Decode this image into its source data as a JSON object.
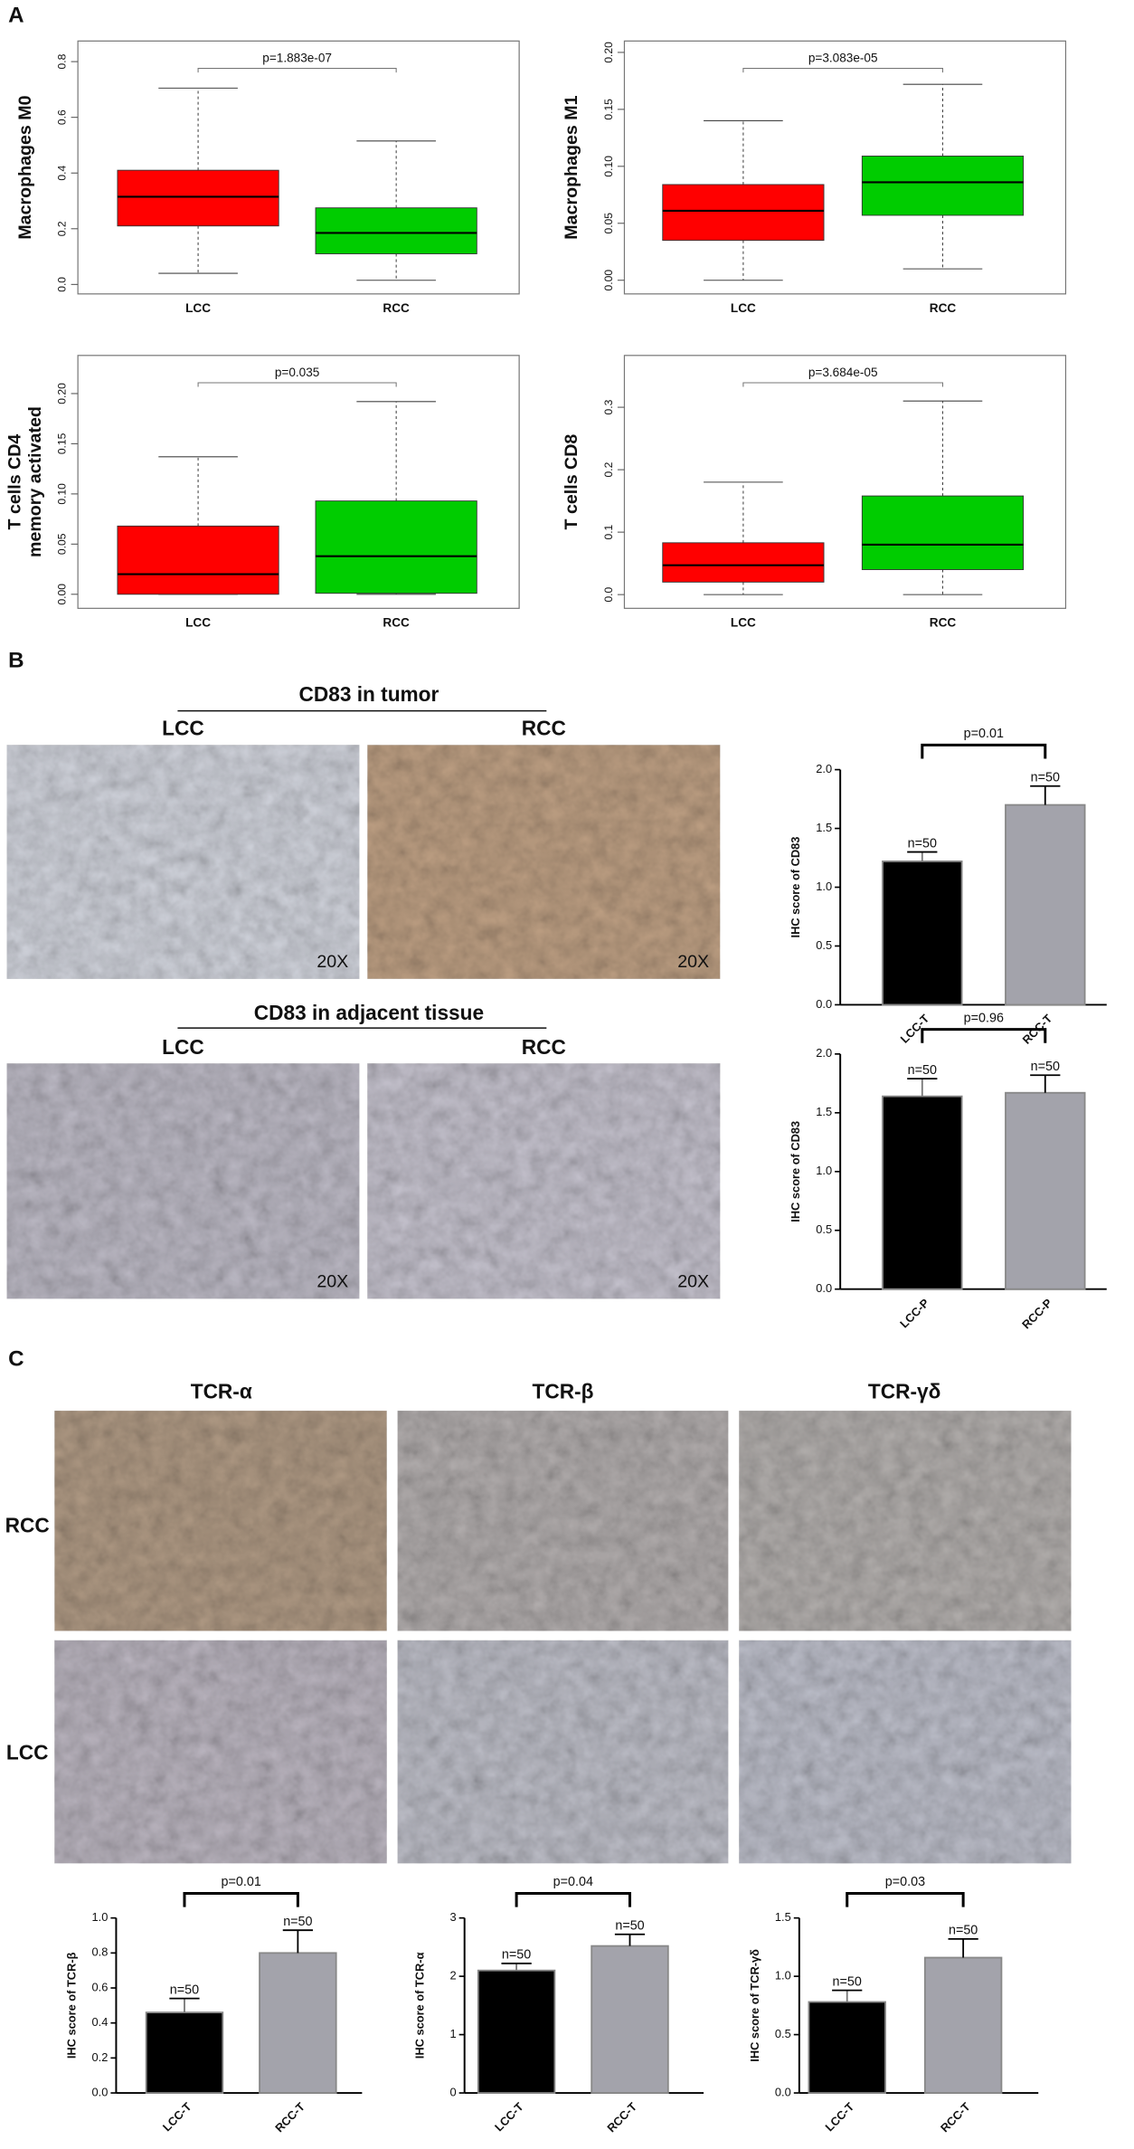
{
  "panel_labels": [
    "A",
    "B",
    "C"
  ],
  "panel_b": {
    "tumor_title": "CD83 in tumor",
    "adjacent_title": "CD83 in adjacent tissue",
    "columns": [
      "LCC",
      "RCC"
    ],
    "magnification": "20X"
  },
  "panel_c": {
    "columns": [
      "TCR-α",
      "TCR-β",
      "TCR-γδ"
    ],
    "rows": [
      "RCC",
      "LCC"
    ]
  },
  "chart_data": [
    {
      "type": "box",
      "ylabel": "Macrophages M0",
      "annotation": "p=1.883e-07",
      "categories": [
        "LCC",
        "RCC"
      ],
      "boxes": [
        {
          "color": "#ff0000",
          "whislo": 0.04,
          "q1": 0.21,
          "median": 0.315,
          "q3": 0.41,
          "whishi": 0.705
        },
        {
          "color": "#00cc00",
          "whislo": 0.015,
          "q1": 0.11,
          "median": 0.185,
          "q3": 0.275,
          "whishi": 0.515
        }
      ],
      "ylim": [
        -0.034,
        0.874
      ],
      "yticks": [
        {
          "value": 0,
          "label": "0.0"
        },
        0.2,
        0.4,
        0.6,
        0.8
      ]
    },
    {
      "type": "box",
      "ylabel": "Macrophages M1",
      "annotation": "p=3.083e-05",
      "categories": [
        "LCC",
        "RCC"
      ],
      "boxes": [
        {
          "color": "#ff0000",
          "whislo": 0.0,
          "q1": 0.035,
          "median": 0.061,
          "q3": 0.084,
          "whishi": 0.14
        },
        {
          "color": "#00cc00",
          "whislo": 0.01,
          "q1": 0.057,
          "median": 0.086,
          "q3": 0.109,
          "whishi": 0.172
        }
      ],
      "ylim": [
        -0.012,
        0.21
      ],
      "yticks": [
        {
          "value": 0,
          "label": "0.00"
        },
        {
          "value": 0.05,
          "label": "0.05"
        },
        {
          "value": 0.1,
          "label": "0.10"
        },
        {
          "value": 0.15,
          "label": "0.15"
        },
        {
          "value": 0.2,
          "label": "0.20"
        }
      ]
    },
    {
      "type": "box",
      "ylabel": [
        "T cells CD4",
        "memory activated"
      ],
      "annotation": "p=0.035",
      "categories": [
        "LCC",
        "RCC"
      ],
      "boxes": [
        {
          "color": "#ff0000",
          "whislo": 0.0,
          "q1": 0.0,
          "median": 0.02,
          "q3": 0.068,
          "whishi": 0.137
        },
        {
          "color": "#00cc00",
          "whislo": 0.0,
          "q1": 0.001,
          "median": 0.038,
          "q3": 0.093,
          "whishi": 0.192
        }
      ],
      "ylim": [
        -0.014,
        0.238
      ],
      "yticks": [
        {
          "value": 0,
          "label": "0.00"
        },
        {
          "value": 0.05,
          "label": "0.05"
        },
        {
          "value": 0.1,
          "label": "0.10"
        },
        {
          "value": 0.15,
          "label": "0.15"
        },
        {
          "value": 0.2,
          "label": "0.20"
        }
      ]
    },
    {
      "type": "box",
      "ylabel": "T cells CD8",
      "annotation": "p=3.684e-05",
      "categories": [
        "LCC",
        "RCC"
      ],
      "boxes": [
        {
          "color": "#ff0000",
          "whislo": 0.0,
          "q1": 0.02,
          "median": 0.047,
          "q3": 0.083,
          "whishi": 0.18
        },
        {
          "color": "#00cc00",
          "whislo": 0.0,
          "q1": 0.04,
          "median": 0.08,
          "q3": 0.158,
          "whishi": 0.31
        }
      ],
      "ylim": [
        -0.022,
        0.383
      ],
      "yticks": [
        {
          "value": 0,
          "label": "0.0"
        },
        0.1,
        0.2,
        0.3
      ]
    },
    {
      "type": "bar",
      "ylabel": "IHC score of CD83",
      "annotation": "p=0.01",
      "categories": [
        "LCC-T",
        "RCC-T"
      ],
      "values": [
        1.22,
        1.7
      ],
      "errors": [
        0.08,
        0.16
      ],
      "colors": [
        "#000000",
        "#a3a3ab"
      ],
      "bar_labels": [
        "n=50",
        "n=50"
      ],
      "ylim": [
        0,
        2
      ],
      "yticks": [
        {
          "value": 0,
          "label": "0.0"
        },
        0.5,
        {
          "value": 1,
          "label": "1.0"
        },
        1.5,
        {
          "value": 2,
          "label": "2.0"
        }
      ]
    },
    {
      "type": "bar",
      "ylabel": "IHC score of CD83",
      "annotation": "p=0.96",
      "categories": [
        "LCC-P",
        "RCC-P"
      ],
      "values": [
        1.64,
        1.67
      ],
      "errors": [
        0.15,
        0.15
      ],
      "colors": [
        "#000000",
        "#a3a3ab"
      ],
      "bar_labels": [
        "n=50",
        "n=50"
      ],
      "ylim": [
        0,
        2
      ],
      "yticks": [
        {
          "value": 0,
          "label": "0.0"
        },
        0.5,
        {
          "value": 1,
          "label": "1.0"
        },
        1.5,
        {
          "value": 2,
          "label": "2.0"
        }
      ]
    },
    {
      "type": "bar",
      "ylabel": "IHC score of TCR-β",
      "annotation": "p=0.01",
      "categories": [
        "LCC-T",
        "RCC-T"
      ],
      "values": [
        0.46,
        0.8
      ],
      "errors": [
        0.08,
        0.13
      ],
      "colors": [
        "#000000",
        "#a3a3ab"
      ],
      "bar_labels": [
        "n=50",
        "n=50"
      ],
      "ylim": [
        0,
        1
      ],
      "yticks": [
        {
          "value": 0,
          "label": "0.0"
        },
        0.2,
        0.4,
        0.6,
        0.8,
        {
          "value": 1,
          "label": "1.0"
        }
      ]
    },
    {
      "type": "bar",
      "ylabel": "IHC score of TCR-α",
      "annotation": "p=0.04",
      "categories": [
        "LCC-T",
        "RCC-T"
      ],
      "values": [
        2.1,
        2.52
      ],
      "errors": [
        0.12,
        0.2
      ],
      "colors": [
        "#000000",
        "#a3a3ab"
      ],
      "bar_labels": [
        "n=50",
        "n=50"
      ],
      "ylim": [
        0,
        3
      ],
      "yticks": [
        0,
        1,
        2,
        3
      ]
    },
    {
      "type": "bar",
      "ylabel": "IHC score of TCR-γδ",
      "annotation": "p=0.03",
      "categories": [
        "LCC-T",
        "RCC-T"
      ],
      "values": [
        0.78,
        1.16
      ],
      "errors": [
        0.1,
        0.16
      ],
      "colors": [
        "#000000",
        "#a3a3ab"
      ],
      "bar_labels": [
        "n=50",
        "n=50"
      ],
      "ylim": [
        0,
        1.5
      ],
      "yticks": [
        {
          "value": 0,
          "label": "0.0"
        },
        0.5,
        {
          "value": 1,
          "label": "1.0"
        },
        1.5
      ]
    }
  ]
}
